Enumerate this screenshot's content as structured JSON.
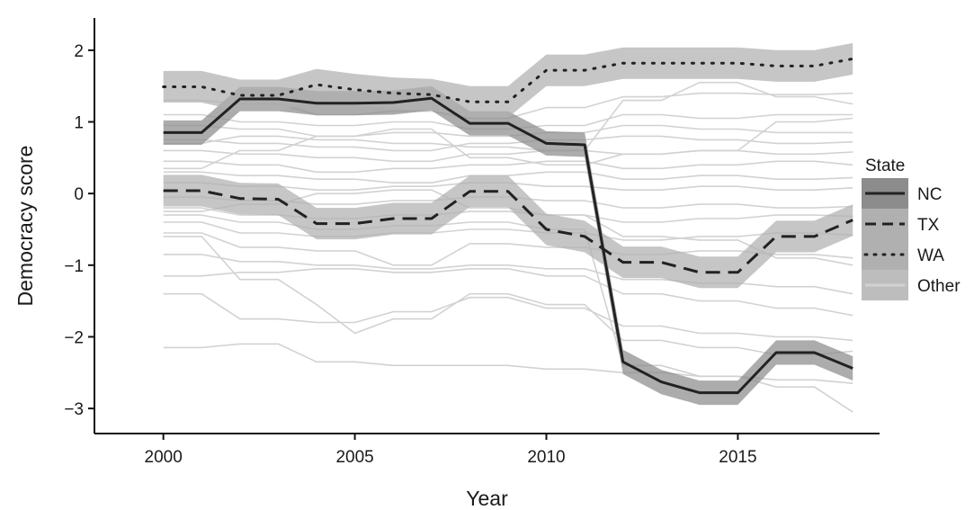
{
  "chart_data": {
    "type": "line",
    "xlabel": "Year",
    "ylabel": "Democracy score",
    "xlim": [
      1998.2,
      2018.7
    ],
    "ylim": [
      -3.35,
      2.45
    ],
    "xticks": [
      2000,
      2005,
      2010,
      2015
    ],
    "yticks": [
      -3,
      -2,
      -1,
      0,
      1,
      2
    ],
    "ytick_labels": [
      "−3",
      "−2",
      "−1",
      "0",
      "1",
      "2"
    ],
    "grid": false,
    "legend": {
      "title": "State",
      "position": "right"
    },
    "x": [
      2000,
      2001,
      2002,
      2003,
      2004,
      2005,
      2006,
      2007,
      2008,
      2009,
      2010,
      2011,
      2012,
      2013,
      2014,
      2015,
      2016,
      2017,
      2018
    ],
    "series": [
      {
        "name": "NC",
        "style": "solid",
        "color": "#222222",
        "band_color": "#8c8c8c",
        "values": [
          0.85,
          0.85,
          1.32,
          1.32,
          1.26,
          1.26,
          1.27,
          1.33,
          0.98,
          0.98,
          0.7,
          0.68,
          -2.35,
          -2.63,
          -2.78,
          -2.78,
          -2.22,
          -2.22,
          -2.44
        ],
        "band_halfwidth": 0.17
      },
      {
        "name": "TX",
        "style": "dashed",
        "color": "#222222",
        "band_color": "#b0b0b0",
        "values": [
          0.04,
          0.04,
          -0.07,
          -0.08,
          -0.42,
          -0.42,
          -0.35,
          -0.35,
          0.03,
          0.03,
          -0.5,
          -0.6,
          -0.96,
          -0.96,
          -1.1,
          -1.1,
          -0.6,
          -0.6,
          -0.37
        ],
        "band_halfwidth": 0.22
      },
      {
        "name": "WA",
        "style": "dotted",
        "color": "#222222",
        "band_color": "#b0b0b0",
        "values": [
          1.49,
          1.49,
          1.37,
          1.37,
          1.52,
          1.45,
          1.4,
          1.38,
          1.28,
          1.28,
          1.72,
          1.72,
          1.82,
          1.82,
          1.82,
          1.82,
          1.78,
          1.78,
          1.88
        ],
        "band_halfwidth": 0.22
      },
      {
        "name": "Other",
        "style": "solid",
        "color": "#d2d2d2",
        "lines": [
          [
            1.3,
            1.3,
            1.25,
            1.25,
            1.1,
            1.1,
            1.15,
            1.15,
            1.05,
            1.05,
            1.2,
            1.2,
            1.35,
            1.35,
            1.4,
            1.4,
            1.38,
            1.38,
            1.4
          ],
          [
            1.1,
            1.1,
            1.0,
            1.0,
            0.95,
            0.95,
            1.0,
            1.0,
            0.9,
            0.9,
            0.95,
            0.95,
            1.1,
            1.1,
            1.05,
            1.05,
            1.1,
            1.1,
            1.1
          ],
          [
            0.95,
            0.95,
            0.9,
            0.9,
            0.8,
            0.8,
            0.85,
            0.85,
            0.8,
            0.8,
            0.85,
            0.85,
            0.95,
            0.95,
            0.9,
            0.9,
            0.85,
            0.85,
            0.85
          ],
          [
            0.75,
            0.75,
            0.7,
            0.7,
            0.65,
            0.65,
            0.6,
            0.6,
            0.7,
            0.7,
            0.75,
            0.75,
            0.8,
            0.8,
            0.75,
            0.75,
            0.7,
            0.7,
            0.72
          ],
          [
            0.6,
            0.6,
            0.55,
            0.55,
            0.5,
            0.5,
            0.45,
            0.45,
            0.55,
            0.55,
            0.6,
            0.6,
            0.55,
            0.55,
            0.6,
            0.6,
            0.55,
            0.55,
            0.58
          ],
          [
            0.45,
            0.45,
            0.4,
            0.4,
            0.3,
            0.3,
            0.35,
            0.35,
            0.4,
            0.4,
            0.45,
            0.45,
            0.35,
            0.35,
            0.4,
            0.4,
            0.45,
            0.45,
            0.4
          ],
          [
            0.3,
            0.3,
            0.25,
            0.25,
            0.2,
            0.2,
            0.15,
            0.15,
            0.25,
            0.25,
            0.3,
            0.3,
            0.2,
            0.2,
            0.25,
            0.25,
            0.2,
            0.2,
            0.22
          ],
          [
            0.15,
            0.15,
            0.1,
            0.1,
            0.05,
            0.05,
            0.1,
            0.1,
            0.15,
            0.15,
            0.1,
            0.1,
            0.05,
            0.05,
            0.1,
            0.1,
            0.05,
            0.05,
            0.08
          ],
          [
            -0.05,
            -0.05,
            -0.1,
            -0.1,
            -0.15,
            -0.15,
            -0.1,
            -0.1,
            -0.05,
            -0.05,
            -0.1,
            -0.1,
            -0.2,
            -0.2,
            -0.15,
            -0.15,
            -0.2,
            -0.2,
            -0.18
          ],
          [
            -0.2,
            -0.2,
            -0.3,
            -0.3,
            -0.35,
            -0.35,
            -0.3,
            -0.3,
            -0.25,
            -0.25,
            -0.3,
            -0.3,
            -0.4,
            -0.4,
            -0.35,
            -0.35,
            -0.3,
            -0.3,
            -0.32
          ],
          [
            -0.4,
            -0.4,
            -0.55,
            -0.55,
            -0.6,
            -0.6,
            -0.55,
            -0.55,
            -0.5,
            -0.5,
            -0.55,
            -0.55,
            -0.65,
            -0.65,
            -0.6,
            -0.6,
            -0.55,
            -0.55,
            -0.58
          ],
          [
            -0.55,
            -0.55,
            -0.75,
            -0.75,
            -0.8,
            -0.8,
            -1.0,
            -1.0,
            -0.7,
            -0.7,
            -0.75,
            -0.75,
            -0.85,
            -0.85,
            -0.8,
            -0.8,
            -0.85,
            -0.85,
            -0.9
          ],
          [
            -0.85,
            -0.85,
            -0.95,
            -0.95,
            -1.0,
            -1.0,
            -1.05,
            -1.05,
            -1.0,
            -1.0,
            -1.05,
            -1.05,
            -1.2,
            -1.2,
            -1.25,
            -1.25,
            -1.3,
            -1.3,
            -1.4
          ],
          [
            -1.15,
            -1.15,
            -1.1,
            -1.1,
            -1.05,
            -1.05,
            -1.1,
            -1.1,
            -1.05,
            -1.05,
            -1.15,
            -1.15,
            -1.4,
            -1.4,
            -1.5,
            -1.5,
            -1.6,
            -1.6,
            -1.7
          ],
          [
            -1.4,
            -1.4,
            -1.75,
            -1.75,
            -1.8,
            -1.8,
            -1.65,
            -1.65,
            -1.45,
            -1.45,
            -1.6,
            -1.6,
            -1.85,
            -1.85,
            -1.95,
            -1.95,
            -2.0,
            -2.0,
            -2.05
          ],
          [
            -0.6,
            -0.6,
            -1.2,
            -1.2,
            -1.55,
            -1.95,
            -1.75,
            -1.75,
            -1.4,
            -1.4,
            -1.55,
            -1.55,
            -2.05,
            -2.05,
            -2.15,
            -2.15,
            -2.25,
            -2.25,
            -2.2
          ],
          [
            -2.15,
            -2.15,
            -2.1,
            -2.1,
            -2.35,
            -2.35,
            -2.4,
            -2.4,
            -2.4,
            -2.4,
            -2.45,
            -2.45,
            -2.5,
            -2.5,
            -2.55,
            -2.55,
            -2.6,
            -2.6,
            -2.65
          ],
          [
            -0.3,
            -0.3,
            -0.4,
            -0.4,
            -0.5,
            -0.5,
            -0.45,
            -0.45,
            -0.4,
            -0.4,
            -0.5,
            -0.5,
            -2.4,
            -2.4,
            -2.55,
            -2.55,
            -2.7,
            -2.7,
            -3.05
          ],
          [
            0.7,
            0.7,
            0.8,
            0.8,
            0.75,
            0.75,
            0.7,
            0.7,
            0.65,
            0.65,
            0.6,
            0.6,
            1.3,
            1.3,
            1.55,
            1.55,
            1.35,
            1.35,
            1.25
          ],
          [
            0.35,
            0.35,
            0.6,
            0.6,
            0.8,
            0.8,
            0.9,
            0.9,
            0.5,
            0.5,
            0.4,
            0.4,
            0.55,
            0.55,
            0.6,
            0.6,
            1.0,
            1.0,
            1.05
          ],
          [
            -0.25,
            -0.25,
            -0.15,
            -0.15,
            0.0,
            0.0,
            0.05,
            0.05,
            -0.2,
            -0.2,
            -0.3,
            -0.3,
            -0.6,
            -0.6,
            -0.65,
            -0.65,
            -0.9,
            -0.9,
            -1.0
          ]
        ]
      }
    ]
  }
}
